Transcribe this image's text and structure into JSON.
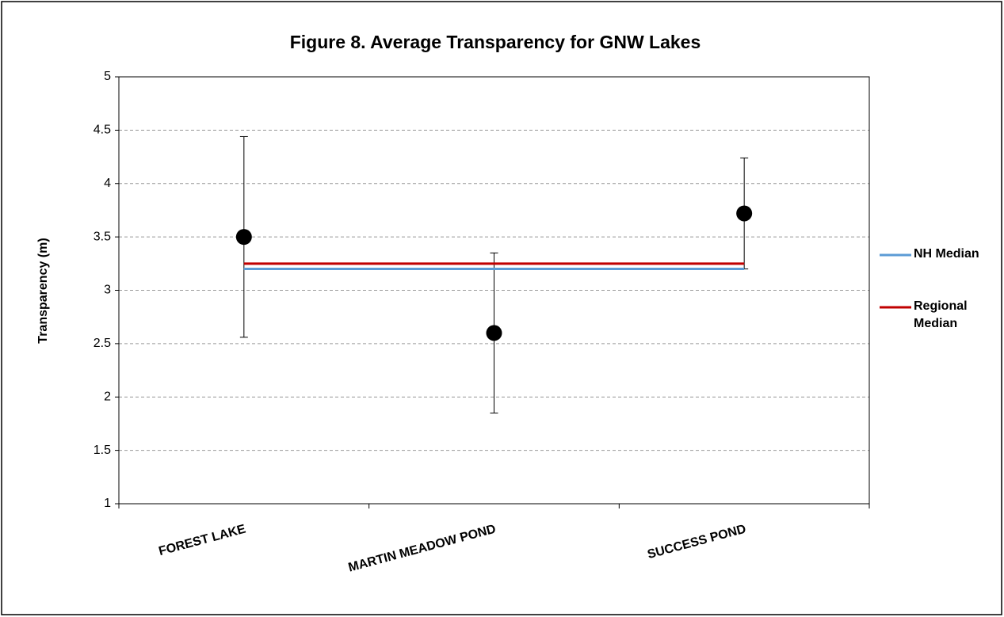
{
  "chart_data": {
    "type": "line",
    "title": "Figure 8. Average Transparency for GNW Lakes",
    "y_label": "Transparency (m)",
    "categories": [
      "FOREST LAKE",
      "MARTIN MEADOW POND",
      "SUCCESS POND"
    ],
    "series": [
      {
        "color": "#000000",
        "style": "markers",
        "values": [
          3.5,
          2.6,
          3.72
        ],
        "errors": [
          0.94,
          0.75,
          0.52
        ]
      },
      {
        "name": "NH Median",
        "color": "#5b9bd5",
        "style": "line",
        "values": [
          3.2,
          3.2,
          3.2
        ]
      },
      {
        "name": "Regional Median",
        "color": "#c00000",
        "style": "line",
        "values": [
          3.25,
          3.25,
          3.25
        ]
      }
    ],
    "ylim": [
      1,
      5
    ],
    "yticks": [
      1,
      1.5,
      2,
      2.5,
      3,
      3.5,
      4,
      4.5,
      5
    ],
    "grid": true,
    "legend": "right"
  }
}
